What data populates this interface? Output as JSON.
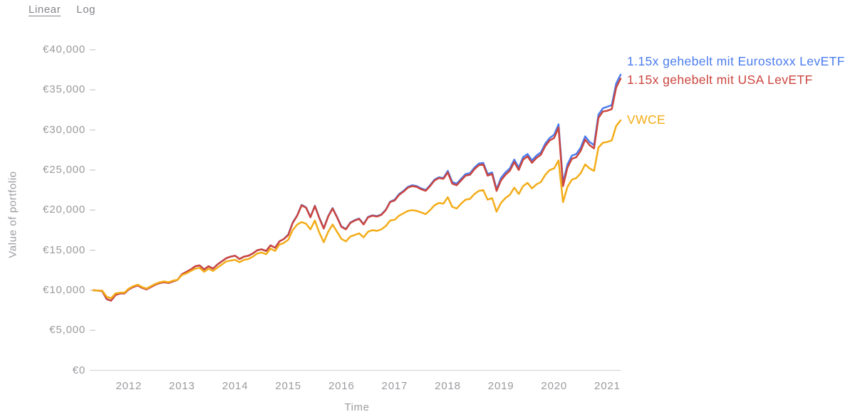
{
  "scale_toggle": {
    "options": [
      {
        "label": "Linear",
        "selected": true
      },
      {
        "label": "Log",
        "selected": false
      }
    ]
  },
  "colors": {
    "eurostoxx_blue": "#4b7cee",
    "usa_red": "#cb453e",
    "vwce_yellow": "#f3ac18",
    "axis_text": "#9b9ba0",
    "axis_line": "#d6d6d6",
    "tick_dash": "#cfcfcf"
  },
  "chart_data": {
    "type": "line",
    "title": "",
    "xlabel": "Time",
    "ylabel": "Value of portfolio",
    "ylim": [
      0,
      40000
    ],
    "grid": false,
    "legend_position": "right-of-line-ends",
    "x_start": "2011-05",
    "x_end": "2021-04",
    "interval": "monthly",
    "y_tick_values": [
      0,
      5000,
      10000,
      15000,
      20000,
      25000,
      30000,
      35000,
      40000
    ],
    "y_tick_labels": [
      "€0",
      "€5,000",
      "€10,000",
      "€15,000",
      "€20,000",
      "€25,000",
      "€30,000",
      "€35,000",
      "€40,000"
    ],
    "x_tick_labels": [
      "2012",
      "2013",
      "2014",
      "2015",
      "2016",
      "2017",
      "2018",
      "2019",
      "2020",
      "2021"
    ],
    "series": [
      {
        "name": "1.15x gehebelt mit Eurostoxx LevETF",
        "color": "#4b7cee",
        "values": [
          10000,
          9950,
          9900,
          8900,
          8700,
          9400,
          9600,
          9600,
          10100,
          10400,
          10600,
          10300,
          10100,
          10400,
          10700,
          10900,
          11000,
          10900,
          11100,
          11300,
          12000,
          12300,
          12600,
          13000,
          13100,
          12600,
          13000,
          12700,
          13200,
          13600,
          14000,
          14200,
          14300,
          13900,
          14200,
          14300,
          14600,
          15000,
          15100,
          14900,
          15600,
          15300,
          16100,
          16400,
          16950,
          18450,
          19350,
          20650,
          20350,
          19150,
          20550,
          19050,
          17750,
          19250,
          20250,
          19150,
          17950,
          17650,
          18450,
          18750,
          18950,
          18250,
          19150,
          19350,
          19250,
          19450,
          20050,
          21050,
          21300,
          22000,
          22400,
          22900,
          23100,
          23000,
          22700,
          22500,
          23100,
          23800,
          24100,
          24000,
          24900,
          23500,
          23300,
          23900,
          24500,
          24600,
          25300,
          25800,
          25900,
          24500,
          24700,
          22600,
          24000,
          24700,
          25200,
          26300,
          25300,
          26600,
          27000,
          26200,
          26800,
          27200,
          28300,
          29000,
          29400,
          30700,
          23400,
          25700,
          26800,
          27000,
          27800,
          29200,
          28500,
          28100,
          31900,
          32700,
          32900,
          33100,
          35800,
          36900
        ]
      },
      {
        "name": "1.15x gehebelt mit USA LevETF",
        "color": "#cb453e",
        "values": [
          10000,
          9950,
          9900,
          8900,
          8700,
          9400,
          9600,
          9600,
          10100,
          10400,
          10600,
          10300,
          10100,
          10400,
          10700,
          10900,
          11000,
          10900,
          11100,
          11300,
          12000,
          12300,
          12600,
          13000,
          13100,
          12600,
          13000,
          12700,
          13200,
          13600,
          14000,
          14200,
          14300,
          13900,
          14200,
          14300,
          14600,
          15000,
          15100,
          14900,
          15600,
          15300,
          16100,
          16400,
          16900,
          18400,
          19300,
          20600,
          20300,
          19100,
          20500,
          19000,
          17700,
          19200,
          20200,
          19100,
          17900,
          17600,
          18400,
          18700,
          18900,
          18200,
          19100,
          19300,
          19200,
          19400,
          20000,
          21000,
          21200,
          21900,
          22300,
          22800,
          23000,
          22900,
          22600,
          22400,
          23000,
          23700,
          24000,
          23900,
          24700,
          23300,
          23100,
          23700,
          24300,
          24400,
          25100,
          25600,
          25700,
          24300,
          24500,
          22400,
          23700,
          24400,
          24900,
          26000,
          25000,
          26300,
          26700,
          25900,
          26500,
          26900,
          28000,
          28700,
          29000,
          30300,
          23000,
          25300,
          26400,
          26600,
          27400,
          28800,
          28100,
          27700,
          31500,
          32300,
          32400,
          32600,
          35300,
          36400
        ]
      },
      {
        "name": "VWCE",
        "color": "#f3ac18",
        "values": [
          10000,
          9950,
          9950,
          9200,
          9000,
          9600,
          9700,
          9700,
          10200,
          10500,
          10700,
          10400,
          10200,
          10500,
          10800,
          11000,
          11100,
          11000,
          11200,
          11300,
          11900,
          12100,
          12400,
          12700,
          12800,
          12300,
          12700,
          12400,
          12800,
          13200,
          13600,
          13700,
          13800,
          13500,
          13800,
          13900,
          14200,
          14600,
          14700,
          14500,
          15200,
          14900,
          15700,
          15900,
          16300,
          17500,
          18200,
          18500,
          18300,
          17600,
          18700,
          17200,
          16000,
          17300,
          18200,
          17300,
          16400,
          16100,
          16700,
          16900,
          17100,
          16600,
          17300,
          17500,
          17400,
          17600,
          18000,
          18700,
          18800,
          19300,
          19600,
          19900,
          20000,
          19900,
          19700,
          19500,
          20000,
          20600,
          20900,
          20800,
          21600,
          20400,
          20200,
          20800,
          21300,
          21400,
          22000,
          22400,
          22500,
          21300,
          21500,
          19800,
          20900,
          21500,
          21900,
          22800,
          22000,
          23000,
          23400,
          22700,
          23200,
          23500,
          24400,
          25000,
          25200,
          26200,
          21000,
          22900,
          23800,
          24000,
          24600,
          25700,
          25200,
          24900,
          27800,
          28400,
          28500,
          28700,
          30500,
          31200
        ]
      }
    ]
  }
}
